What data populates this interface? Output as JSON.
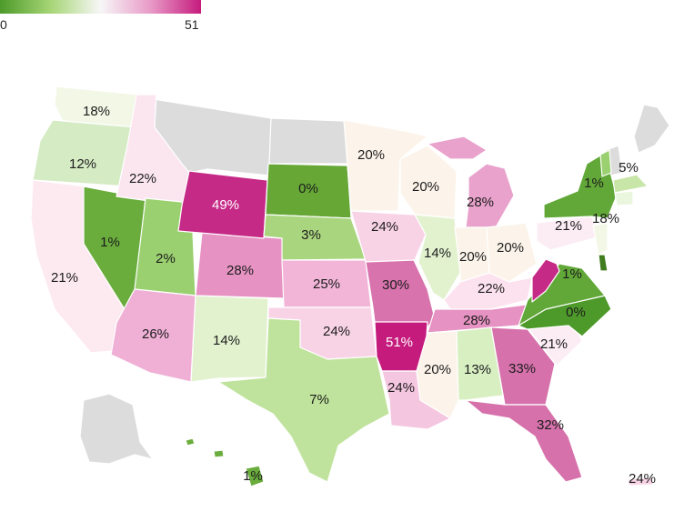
{
  "legend": {
    "min": "0",
    "max": "51"
  },
  "colors": {
    "nodata": "#dcdcdc",
    "scale": [
      "#4d9a2a",
      "#a6d575",
      "#f7f7f7",
      "#e89ac7",
      "#c51b7d"
    ]
  },
  "states": {
    "WA": "18%",
    "OR": "12%",
    "CA": "21%",
    "NV": "1%",
    "ID": "22%",
    "UT": "2%",
    "AZ": "26%",
    "NM": "14%",
    "CO": "28%",
    "WY": "49%",
    "SD": "0%",
    "NE": "3%",
    "KS": "25%",
    "OK": "24%",
    "TX": "7%",
    "MN": "20%",
    "IA": "24%",
    "MO": "30%",
    "AR": "51%",
    "LA": "24%",
    "WI": "20%",
    "IL": "14%",
    "MI": "28%",
    "IN": "20%",
    "OH": "20%",
    "KY": "22%",
    "TN": "28%",
    "MS": "20%",
    "AL": "13%",
    "GA": "33%",
    "FL": "32%",
    "SC": "21%",
    "NC": "0%",
    "VA": "1%",
    "WV": "",
    "PA": "21%",
    "NY": "1%",
    "NJ": "18%",
    "VT": "5%",
    "HI": "1%",
    "PR": "24%"
  }
}
